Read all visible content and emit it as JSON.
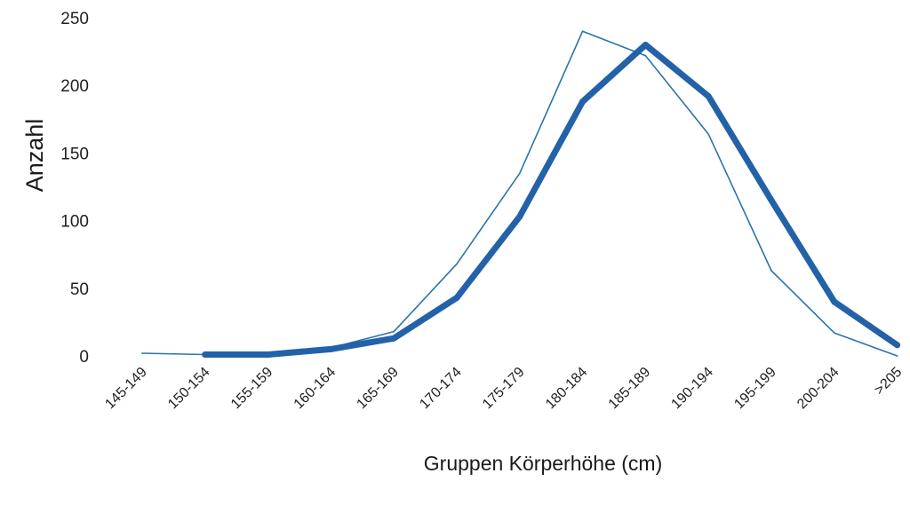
{
  "chart_data": {
    "type": "line",
    "title": "",
    "xlabel": "Gruppen Körperhöhe (cm)",
    "ylabel": "Anzahl",
    "ylim": [
      0,
      250
    ],
    "yticks": [
      "0",
      "50",
      "100",
      "150",
      "200",
      "250"
    ],
    "grid": false,
    "legend": "none",
    "categories": [
      "145-149",
      "150-154",
      "155-159",
      "160-164",
      "165-169",
      "170-174",
      "175-179",
      "180-184",
      "185-189",
      "190-194",
      "195-199",
      "200-204",
      ">205"
    ],
    "series": [
      {
        "style": "thin",
        "color": "#2a74ad",
        "values": [
          2,
          1,
          1,
          6,
          18,
          68,
          135,
          240,
          222,
          164,
          63,
          17,
          0
        ]
      },
      {
        "style": "thick",
        "color": "#2362a8",
        "values": [
          null,
          1,
          1,
          5,
          13,
          43,
          103,
          188,
          230,
          192,
          115,
          40,
          8
        ]
      }
    ]
  }
}
